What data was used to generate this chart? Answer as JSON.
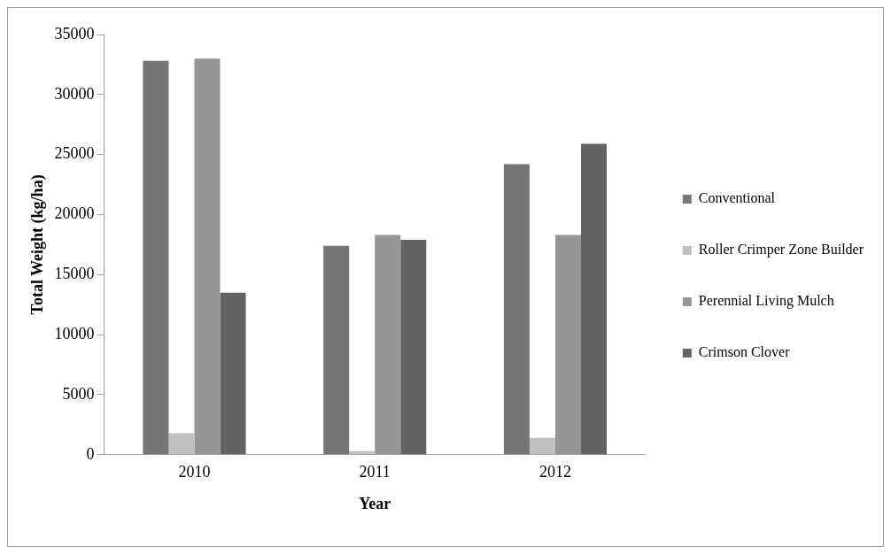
{
  "chart_data": {
    "type": "bar",
    "xlabel": "Year",
    "ylabel": "Total Weight (kg/ha)",
    "categories": [
      "2010",
      "2011",
      "2012"
    ],
    "series": [
      {
        "name": "Conventional",
        "color": "#767676",
        "values": [
          32800,
          17400,
          24200
        ]
      },
      {
        "name": "Roller Crimper Zone Builder",
        "color": "#c0c0c0",
        "values": [
          1800,
          300,
          1400
        ]
      },
      {
        "name": "Perennial Living Mulch",
        "color": "#969696",
        "values": [
          33000,
          18300,
          18300
        ]
      },
      {
        "name": "Crimson Clover",
        "color": "#636363",
        "values": [
          13500,
          17900,
          25900
        ]
      }
    ],
    "ylim": [
      0,
      35000
    ],
    "yticks": [
      0,
      5000,
      10000,
      15000,
      20000,
      25000,
      30000,
      35000
    ],
    "grid": false,
    "legend": "right"
  }
}
